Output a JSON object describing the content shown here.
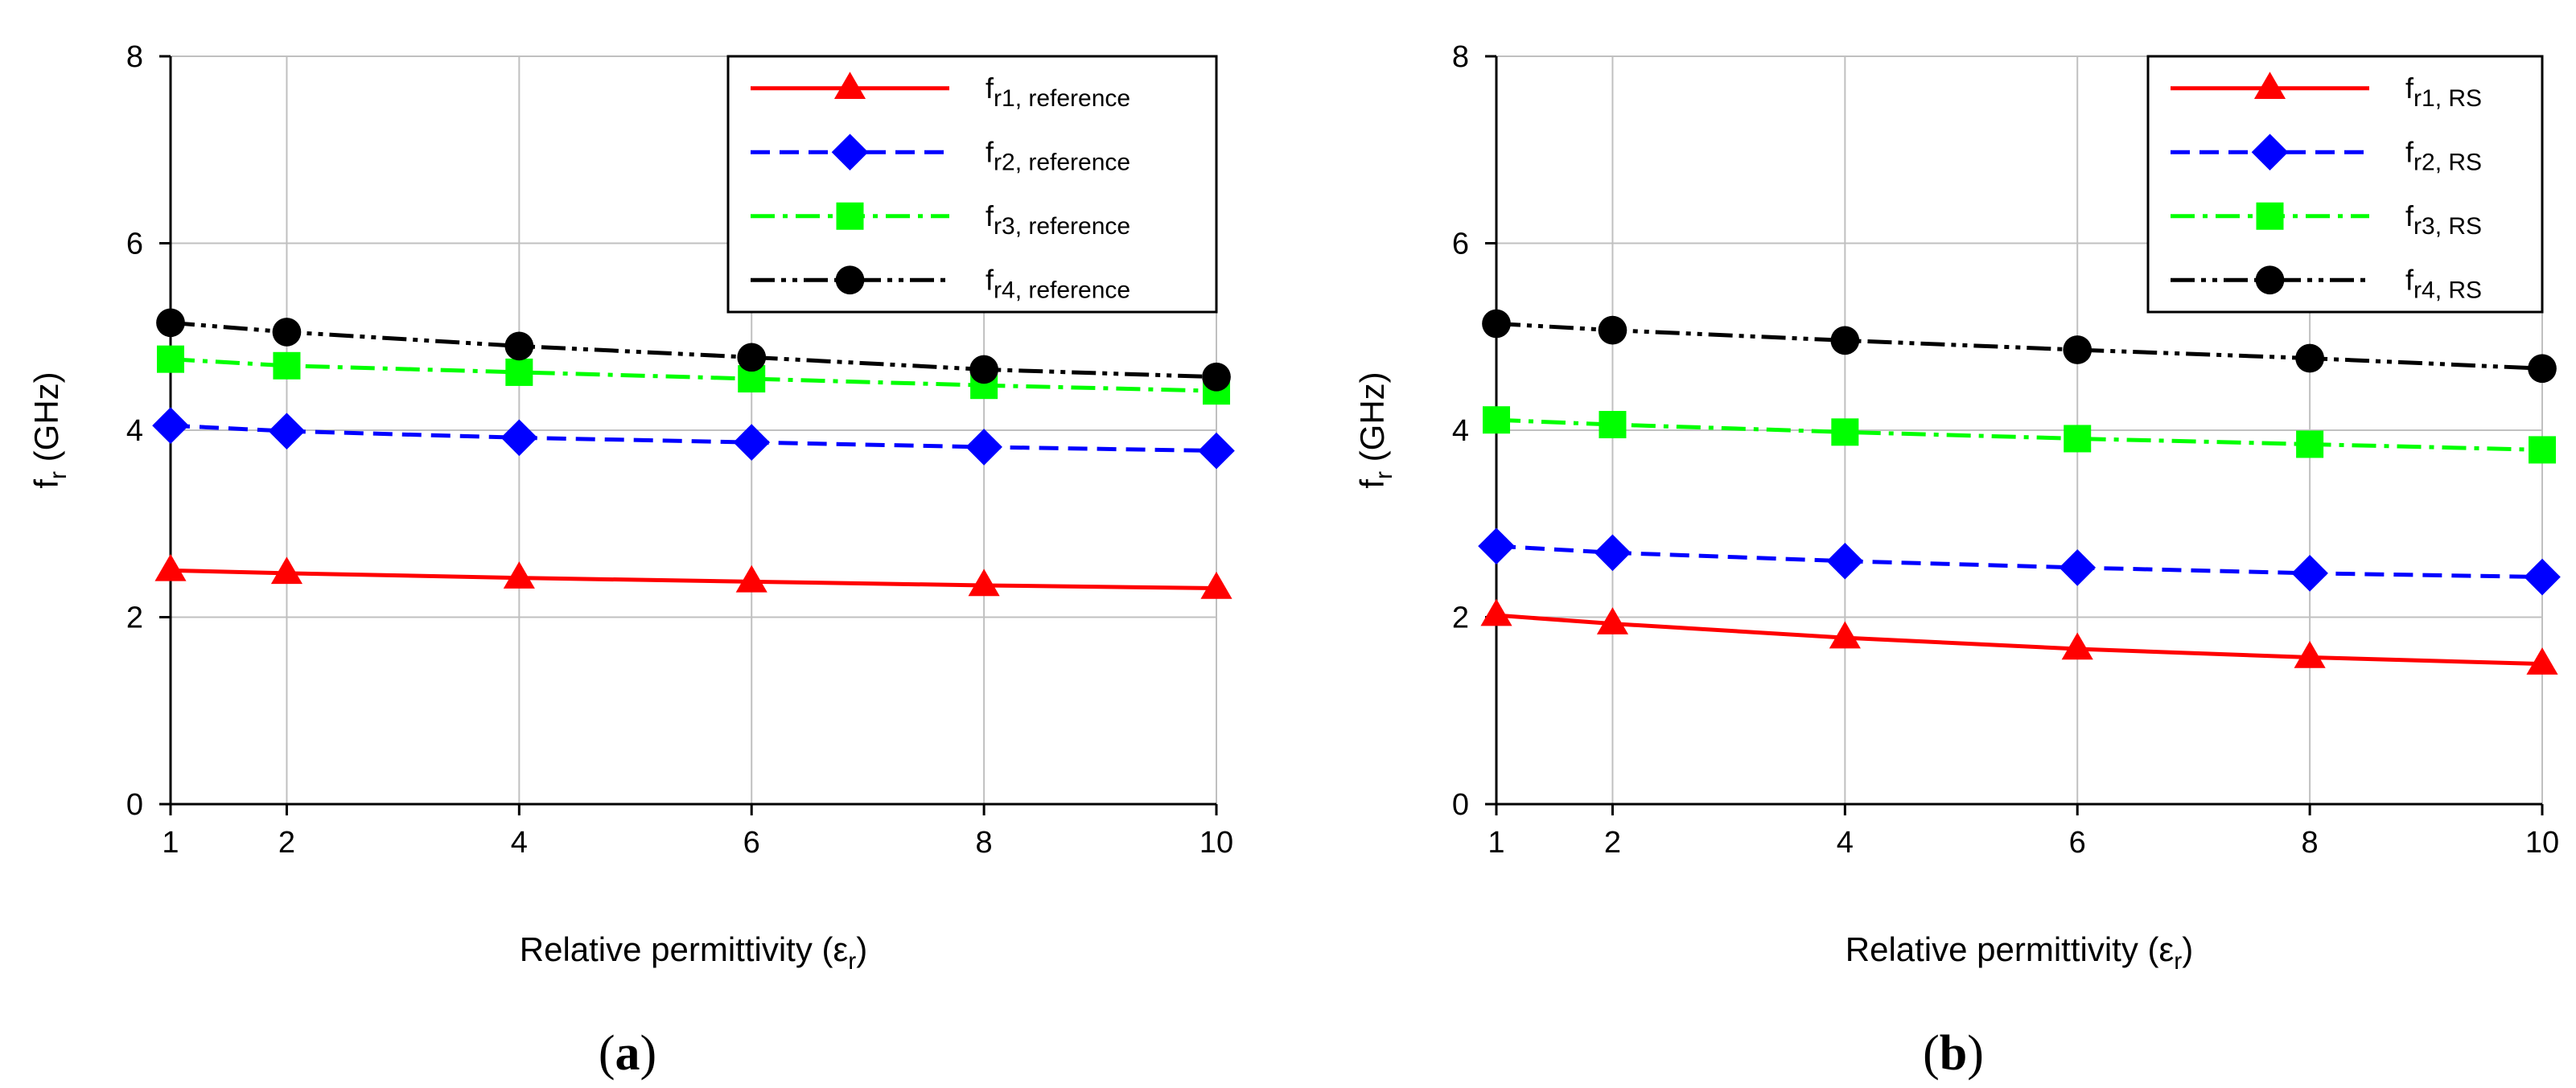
{
  "chart_data": [
    {
      "type": "line",
      "panel": "a",
      "caption_open": "(",
      "caption_letter": "a",
      "caption_close": ")",
      "xlabel": "Relative permittivity (ε",
      "xlabel_sub": "r",
      "xlabel_end": ")",
      "ylabel": "f",
      "ylabel_sub": "r",
      "ylabel_end": " (GHz)",
      "xlim": [
        1,
        10
      ],
      "ylim": [
        0,
        8
      ],
      "xticks": [
        1,
        2,
        4,
        6,
        8,
        10
      ],
      "yticks": [
        0,
        2,
        4,
        6,
        8
      ],
      "grid": true,
      "legend_position": "top-right",
      "x": [
        1,
        2,
        4,
        6,
        8,
        10
      ],
      "series": [
        {
          "name": "f",
          "sub": "r1, reference",
          "color": "#ff0000",
          "marker": "triangle",
          "dash": "solid",
          "values": [
            2.5,
            2.47,
            2.42,
            2.38,
            2.34,
            2.31
          ]
        },
        {
          "name": "f",
          "sub": "r2, reference",
          "color": "#0000ff",
          "marker": "diamond",
          "dash": "dashed",
          "values": [
            4.05,
            3.99,
            3.92,
            3.87,
            3.82,
            3.78
          ]
        },
        {
          "name": "f",
          "sub": "r3, reference",
          "color": "#00ff00",
          "marker": "square",
          "dash": "dashdot",
          "values": [
            4.76,
            4.69,
            4.62,
            4.55,
            4.48,
            4.42
          ]
        },
        {
          "name": "f",
          "sub": "r4, reference",
          "color": "#000000",
          "marker": "circle",
          "dash": "dashdotdot",
          "values": [
            5.15,
            5.05,
            4.9,
            4.78,
            4.65,
            4.57
          ]
        }
      ]
    },
    {
      "type": "line",
      "panel": "b",
      "caption_open": "(",
      "caption_letter": "b",
      "caption_close": ")",
      "xlabel": "Relative permittivity (ε",
      "xlabel_sub": "r",
      "xlabel_end": ")",
      "ylabel": "f",
      "ylabel_sub": "r",
      "ylabel_end": " (GHz)",
      "xlim": [
        1,
        10
      ],
      "ylim": [
        0,
        8
      ],
      "xticks": [
        1,
        2,
        4,
        6,
        8,
        10
      ],
      "yticks": [
        0,
        2,
        4,
        6,
        8
      ],
      "grid": true,
      "legend_position": "top-right",
      "x": [
        1,
        2,
        4,
        6,
        8,
        10
      ],
      "series": [
        {
          "name": "f",
          "sub": "r1, RS",
          "color": "#ff0000",
          "marker": "triangle",
          "dash": "solid",
          "values": [
            2.02,
            1.93,
            1.78,
            1.66,
            1.57,
            1.5
          ]
        },
        {
          "name": "f",
          "sub": "r2, RS",
          "color": "#0000ff",
          "marker": "diamond",
          "dash": "dashed",
          "values": [
            2.76,
            2.69,
            2.6,
            2.53,
            2.47,
            2.43
          ]
        },
        {
          "name": "f",
          "sub": "r3, RS",
          "color": "#00ff00",
          "marker": "square",
          "dash": "dashdot",
          "values": [
            4.11,
            4.06,
            3.98,
            3.91,
            3.85,
            3.79
          ]
        },
        {
          "name": "f",
          "sub": "r4, RS",
          "color": "#000000",
          "marker": "circle",
          "dash": "dashdotdot",
          "values": [
            5.14,
            5.07,
            4.96,
            4.86,
            4.77,
            4.66
          ]
        }
      ]
    }
  ]
}
